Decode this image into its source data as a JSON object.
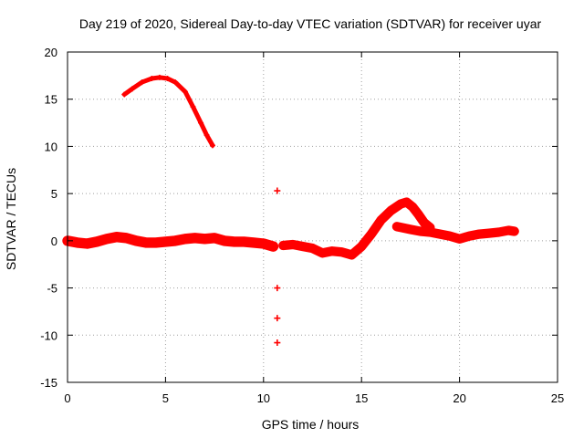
{
  "chart_data": {
    "type": "scatter",
    "title": "Day 219 of 2020, Sidereal Day-to-day VTEC variation (SDTVAR) for receiver uyar",
    "xlabel": "GPS time / hours",
    "ylabel": "SDTVAR / TECUs",
    "xlim": [
      0,
      25
    ],
    "ylim": [
      -15,
      20
    ],
    "xticks": [
      0,
      5,
      10,
      15,
      20,
      25
    ],
    "yticks": [
      -15,
      -10,
      -5,
      0,
      5,
      10,
      15,
      20
    ],
    "grid": true,
    "color": "#ff0000",
    "series": [
      {
        "name": "arc-upper",
        "band": 0.35,
        "x": [
          2.9,
          3.3,
          3.8,
          4.3,
          4.7,
          5.1,
          5.5,
          6.0,
          6.4,
          6.8,
          7.1,
          7.4
        ],
        "y": [
          15.5,
          16.1,
          16.8,
          17.2,
          17.3,
          17.2,
          16.8,
          15.8,
          14.2,
          12.5,
          11.2,
          10.1
        ]
      },
      {
        "name": "main-trace",
        "band": 1.1,
        "x": [
          0.0,
          0.5,
          1.0,
          1.5,
          2.0,
          2.5,
          3.0,
          3.5,
          4.0,
          4.5,
          5.0,
          5.5,
          6.0,
          6.5,
          7.0,
          7.5,
          8.0,
          8.5,
          9.0,
          9.5,
          10.0,
          10.5
        ],
        "y": [
          0.0,
          -0.2,
          -0.3,
          -0.1,
          0.2,
          0.4,
          0.3,
          0.0,
          -0.2,
          -0.2,
          -0.1,
          0.0,
          0.2,
          0.3,
          0.2,
          0.3,
          0.0,
          -0.1,
          -0.1,
          -0.2,
          -0.3,
          -0.6
        ]
      },
      {
        "name": "dip-and-rise",
        "band": 1.0,
        "x": [
          11.0,
          11.5,
          12.0,
          12.5,
          13.0,
          13.5,
          14.0,
          14.5,
          15.0,
          15.5,
          16.0,
          16.5,
          17.0,
          17.3,
          17.6,
          17.9,
          18.2,
          18.5
        ],
        "y": [
          -0.5,
          -0.4,
          -0.6,
          -0.8,
          -1.3,
          -1.1,
          -1.2,
          -1.5,
          -0.6,
          0.7,
          2.2,
          3.2,
          3.9,
          4.1,
          3.6,
          2.8,
          1.9,
          1.4
        ]
      },
      {
        "name": "tail",
        "band": 1.0,
        "x": [
          16.8,
          17.5,
          18.0,
          18.5,
          19.0,
          19.5,
          20.0,
          20.5,
          21.0,
          21.5,
          22.0,
          22.5,
          22.8
        ],
        "y": [
          1.5,
          1.2,
          1.0,
          0.9,
          0.7,
          0.5,
          0.2,
          0.5,
          0.7,
          0.8,
          0.9,
          1.1,
          1.0
        ]
      }
    ],
    "outliers": [
      {
        "x": 10.7,
        "y": 5.3
      },
      {
        "x": 10.7,
        "y": -5.0
      },
      {
        "x": 10.7,
        "y": -8.2
      },
      {
        "x": 10.7,
        "y": -10.8
      }
    ]
  }
}
